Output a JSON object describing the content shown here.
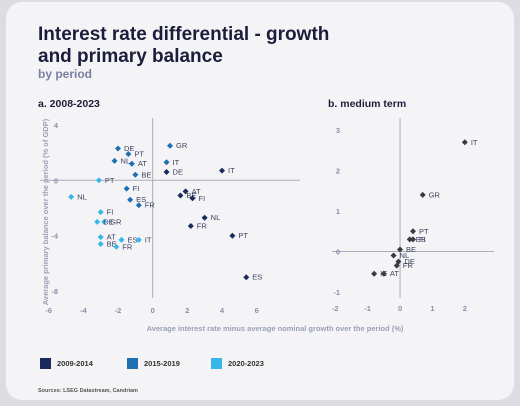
{
  "header": {
    "title": "Interest rate differential - growth and primary balance",
    "subtitle": "by period"
  },
  "source": "Sources: LSEG Datastream, Candriam",
  "legend": [
    {
      "label": "2009-2014",
      "color": "#1b2a5c"
    },
    {
      "label": "2015-2019",
      "color": "#1d6fb0"
    },
    {
      "label": "2020-2023",
      "color": "#38b6ea"
    }
  ],
  "axis_labels": {
    "x": "Average interest rate minus average nominal  growth over the period (%)",
    "y": "Average primary balance over the period (% of GDP)"
  },
  "chart_data": [
    {
      "type": "scatter",
      "title": "a. 2008-2023",
      "xlim": [
        -6.5,
        8.5
      ],
      "ylim": [
        -8.5,
        4.5
      ],
      "x_ticks": [
        -6,
        -4,
        -2,
        0,
        2,
        4,
        6
      ],
      "y_ticks": [
        4,
        0,
        -4,
        -8
      ],
      "series": [
        {
          "name": "2009-2014",
          "color": "#1b2a5c",
          "points": [
            {
              "label": "IT",
              "x": 4.0,
              "y": 0.7
            },
            {
              "label": "DE",
              "x": 0.8,
              "y": 0.6
            },
            {
              "label": "AT",
              "x": 1.9,
              "y": -0.8
            },
            {
              "label": "BE",
              "x": 1.6,
              "y": -1.1
            },
            {
              "label": "FI",
              "x": 2.3,
              "y": -1.3
            },
            {
              "label": "NL",
              "x": 3.0,
              "y": -2.7
            },
            {
              "label": "FR",
              "x": 2.2,
              "y": -3.3
            },
            {
              "label": "PT",
              "x": 4.6,
              "y": -4.0
            },
            {
              "label": "ES",
              "x": 5.4,
              "y": -7.0
            }
          ]
        },
        {
          "name": "2015-2019",
          "color": "#1d6fb0",
          "points": [
            {
              "label": "GR",
              "x": 1.0,
              "y": 2.5
            },
            {
              "label": "DE",
              "x": -2.0,
              "y": 2.3
            },
            {
              "label": "PT",
              "x": -1.4,
              "y": 1.9
            },
            {
              "label": "NL",
              "x": -2.2,
              "y": 1.4
            },
            {
              "label": "AT",
              "x": -1.2,
              "y": 1.2
            },
            {
              "label": "IT",
              "x": 0.8,
              "y": 1.3
            },
            {
              "label": "BE",
              "x": -1.0,
              "y": 0.4
            },
            {
              "label": "FI",
              "x": -1.5,
              "y": -0.6
            },
            {
              "label": "ES",
              "x": -1.3,
              "y": -1.4
            },
            {
              "label": "FR",
              "x": -0.8,
              "y": -1.8
            }
          ]
        },
        {
          "name": "2020-2023",
          "color": "#38b6ea",
          "points": [
            {
              "label": "PT",
              "x": -3.1,
              "y": 0.0
            },
            {
              "label": "NL",
              "x": -4.7,
              "y": -1.2
            },
            {
              "label": "FI",
              "x": -3.0,
              "y": -2.3
            },
            {
              "label": "GR",
              "x": -2.8,
              "y": -3.0
            },
            {
              "label": "DE",
              "x": -3.2,
              "y": -3.0
            },
            {
              "label": "AT",
              "x": -3.0,
              "y": -4.1
            },
            {
              "label": "ES",
              "x": -1.8,
              "y": -4.3
            },
            {
              "label": "IT",
              "x": -0.8,
              "y": -4.3
            },
            {
              "label": "BE",
              "x": -3.0,
              "y": -4.6
            },
            {
              "label": "FR",
              "x": -2.1,
              "y": -4.8
            }
          ]
        }
      ]
    },
    {
      "type": "scatter",
      "title": "b. medium term",
      "xlim": [
        -2.1,
        2.9
      ],
      "ylim": [
        -1.15,
        3.3
      ],
      "x_ticks": [
        -2,
        -1,
        0,
        1,
        2
      ],
      "y_ticks": [
        3,
        2,
        1,
        0,
        -1
      ],
      "series": [
        {
          "name": "medium term",
          "color": "#3a3a3a",
          "points": [
            {
              "label": "IT",
              "x": 2.0,
              "y": 2.7
            },
            {
              "label": "GR",
              "x": 0.7,
              "y": 1.4
            },
            {
              "label": "PT",
              "x": 0.4,
              "y": 0.5
            },
            {
              "label": "ES",
              "x": 0.3,
              "y": 0.3
            },
            {
              "label": "FI",
              "x": 0.4,
              "y": 0.3
            },
            {
              "label": "BE",
              "x": 0.0,
              "y": 0.05
            },
            {
              "label": "NL",
              "x": -0.2,
              "y": -0.1
            },
            {
              "label": "DE",
              "x": -0.05,
              "y": -0.25
            },
            {
              "label": "FR",
              "x": -0.1,
              "y": -0.35
            },
            {
              "label": "IE",
              "x": -0.8,
              "y": -0.55
            },
            {
              "label": "AT",
              "x": -0.5,
              "y": -0.55
            }
          ]
        }
      ]
    }
  ]
}
